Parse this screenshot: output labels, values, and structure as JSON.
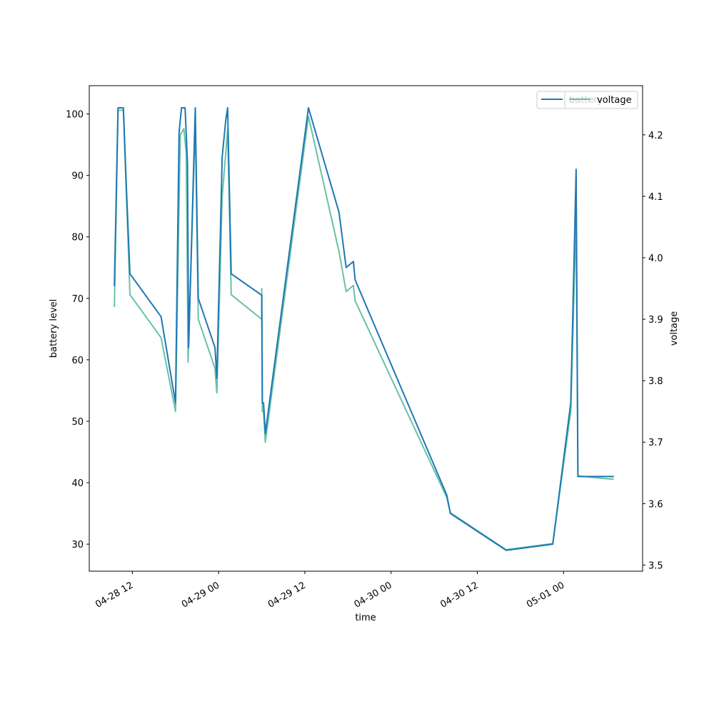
{
  "chart_data": {
    "type": "line",
    "xlabel": "time",
    "ylabel": "battery level",
    "y2label": "voltage",
    "xlim": [
      "2018-04-28T06:00",
      "2018-05-01T11:00"
    ],
    "ylim": [
      25.6,
      104.6
    ],
    "y2lim": [
      3.49,
      4.28
    ],
    "x_ticks": [
      {
        "value": "2018-04-28T12:00",
        "label": "04-28 12"
      },
      {
        "value": "2018-04-29T00:00",
        "label": "04-29 00"
      },
      {
        "value": "2018-04-29T12:00",
        "label": "04-29 12"
      },
      {
        "value": "2018-04-30T00:00",
        "label": "04-30 00"
      },
      {
        "value": "2018-04-30T12:00",
        "label": "04-30 12"
      },
      {
        "value": "2018-05-01T00:00",
        "label": "05-01 00"
      }
    ],
    "y_ticks": [
      30,
      40,
      50,
      60,
      70,
      80,
      90,
      100
    ],
    "y2_ticks": [
      3.5,
      3.6,
      3.7,
      3.8,
      3.9,
      4.0,
      4.1,
      4.2
    ],
    "grid": false,
    "legend_placement": "top-right",
    "series": [
      {
        "name": "battery",
        "axis": "left",
        "color": "#1f77b4",
        "points": [
          [
            "2018-04-28T09:30",
            72
          ],
          [
            "2018-04-28T10:00",
            101
          ],
          [
            "2018-04-28T10:45",
            101
          ],
          [
            "2018-04-28T11:10",
            88
          ],
          [
            "2018-04-28T11:40",
            74
          ],
          [
            "2018-04-28T16:00",
            67
          ],
          [
            "2018-04-28T18:00",
            53
          ],
          [
            "2018-04-28T18:30",
            97
          ],
          [
            "2018-04-28T18:50",
            101
          ],
          [
            "2018-04-28T19:20",
            101
          ],
          [
            "2018-04-28T19:40",
            92
          ],
          [
            "2018-04-28T19:50",
            62
          ],
          [
            "2018-04-28T20:45",
            101
          ],
          [
            "2018-04-28T21:10",
            70
          ],
          [
            "2018-04-28T23:30",
            62
          ],
          [
            "2018-04-28T23:45",
            57
          ],
          [
            "2018-04-29T00:30",
            93
          ],
          [
            "2018-04-29T01:00",
            99
          ],
          [
            "2018-04-29T01:15",
            101
          ],
          [
            "2018-04-29T01:45",
            74
          ],
          [
            "2018-04-29T06:00",
            70.5
          ],
          [
            "2018-04-29T06:05",
            53
          ],
          [
            "2018-04-29T06:15",
            53
          ],
          [
            "2018-04-29T06:30",
            48
          ],
          [
            "2018-04-29T12:30",
            101
          ],
          [
            "2018-04-29T16:45",
            84
          ],
          [
            "2018-04-29T17:45",
            75
          ],
          [
            "2018-04-29T18:45",
            76
          ],
          [
            "2018-04-29T19:00",
            73
          ],
          [
            "2018-04-30T07:45",
            38
          ],
          [
            "2018-04-30T08:15",
            35
          ],
          [
            "2018-04-30T16:00",
            29
          ],
          [
            "2018-04-30T22:30",
            30
          ],
          [
            "2018-05-01T01:00",
            53
          ],
          [
            "2018-05-01T01:45",
            91
          ],
          [
            "2018-05-01T02:00",
            41
          ],
          [
            "2018-05-01T06:30",
            41
          ],
          [
            "2018-05-01T07:00",
            41
          ]
        ]
      },
      {
        "name": "voltage",
        "axis": "right",
        "color": "#66c2a5",
        "points": [
          [
            "2018-04-28T09:30",
            3.92
          ],
          [
            "2018-04-28T10:00",
            4.24
          ],
          [
            "2018-04-28T10:45",
            4.24
          ],
          [
            "2018-04-28T11:40",
            3.94
          ],
          [
            "2018-04-28T16:00",
            3.87
          ],
          [
            "2018-04-28T18:00",
            3.75
          ],
          [
            "2018-04-28T18:40",
            4.2
          ],
          [
            "2018-04-28T19:10",
            4.21
          ],
          [
            "2018-04-28T19:30",
            4.17
          ],
          [
            "2018-04-28T19:45",
            3.83
          ],
          [
            "2018-04-28T20:45",
            4.22
          ],
          [
            "2018-04-28T21:10",
            3.9
          ],
          [
            "2018-04-28T23:30",
            3.82
          ],
          [
            "2018-04-28T23:45",
            3.78
          ],
          [
            "2018-04-29T00:30",
            4.1
          ],
          [
            "2018-04-29T01:00",
            4.17
          ],
          [
            "2018-04-29T01:15",
            4.21
          ],
          [
            "2018-04-29T01:45",
            3.94
          ],
          [
            "2018-04-29T06:00",
            3.9
          ],
          [
            "2018-04-29T06:00",
            3.95
          ],
          [
            "2018-04-29T06:05",
            3.75
          ],
          [
            "2018-04-29T06:15",
            3.75
          ],
          [
            "2018-04-29T06:30",
            3.7
          ],
          [
            "2018-04-29T12:30",
            4.23
          ],
          [
            "2018-04-29T16:45",
            4.01
          ],
          [
            "2018-04-29T17:45",
            3.945
          ],
          [
            "2018-04-29T18:45",
            3.955
          ],
          [
            "2018-04-29T19:00",
            3.93
          ],
          [
            "2018-04-30T07:45",
            3.61
          ],
          [
            "2018-04-30T08:15",
            3.585
          ],
          [
            "2018-04-30T16:00",
            3.525
          ],
          [
            "2018-04-30T22:30",
            3.535
          ],
          [
            "2018-05-01T01:00",
            3.75
          ],
          [
            "2018-05-01T01:45",
            4.07
          ],
          [
            "2018-05-01T02:00",
            3.645
          ],
          [
            "2018-05-01T06:30",
            3.64
          ],
          [
            "2018-05-01T07:00",
            3.64
          ]
        ]
      }
    ]
  }
}
